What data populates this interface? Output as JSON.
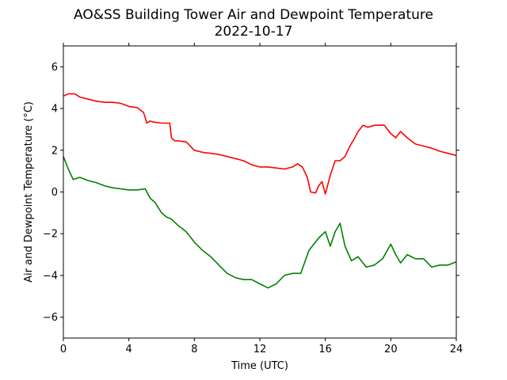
{
  "chart_data": {
    "type": "line",
    "title": "AO&SS Building Tower Air and Dewpoint Temperature",
    "subtitle": "2022-10-17",
    "xlabel": "Time (UTC)",
    "ylabel": "Air and Dewpoint Temperature (°C)",
    "xlim": [
      0,
      24
    ],
    "ylim": [
      -7,
      7
    ],
    "x_ticks": [
      0,
      4,
      8,
      12,
      16,
      20,
      24
    ],
    "y_ticks": [
      -6,
      -4,
      -2,
      0,
      2,
      4,
      6
    ],
    "grid": false,
    "legend": "none",
    "series": [
      {
        "color": "#ff0000",
        "x": [
          0,
          0.3,
          0.7,
          1.0,
          1.5,
          2.0,
          2.5,
          3.0,
          3.5,
          4.0,
          4.5,
          4.9,
          5.1,
          5.3,
          5.5,
          6.0,
          6.5,
          6.6,
          6.8,
          7.0,
          7.5,
          8.0,
          8.5,
          9.0,
          9.5,
          10.0,
          10.5,
          11.0,
          11.5,
          12.0,
          12.5,
          13.0,
          13.5,
          14.0,
          14.3,
          14.6,
          14.9,
          15.1,
          15.4,
          15.6,
          15.8,
          16.0,
          16.3,
          16.6,
          16.9,
          17.2,
          17.5,
          17.8,
          18.0,
          18.3,
          18.6,
          19.0,
          19.3,
          19.6,
          20.0,
          20.3,
          20.6,
          21.0,
          21.5,
          22.0,
          22.5,
          23.0,
          23.5,
          24.0
        ],
        "values": [
          4.6,
          4.7,
          4.7,
          4.55,
          4.45,
          4.35,
          4.3,
          4.3,
          4.25,
          4.1,
          4.05,
          3.8,
          3.3,
          3.4,
          3.35,
          3.3,
          3.3,
          2.6,
          2.45,
          2.45,
          2.4,
          2.0,
          1.9,
          1.85,
          1.8,
          1.7,
          1.6,
          1.5,
          1.3,
          1.2,
          1.2,
          1.15,
          1.1,
          1.2,
          1.35,
          1.2,
          0.7,
          0.0,
          -0.05,
          0.3,
          0.5,
          -0.1,
          0.8,
          1.5,
          1.5,
          1.7,
          2.2,
          2.6,
          2.9,
          3.2,
          3.1,
          3.2,
          3.2,
          3.2,
          2.8,
          2.6,
          2.9,
          2.6,
          2.3,
          2.2,
          2.1,
          1.95,
          1.85,
          1.75
        ]
      },
      {
        "color": "#008000",
        "x": [
          0,
          0.3,
          0.6,
          1.0,
          1.5,
          2.0,
          2.5,
          3.0,
          3.5,
          4.0,
          4.5,
          5.0,
          5.3,
          5.6,
          6.0,
          6.3,
          6.6,
          7.0,
          7.5,
          8.0,
          8.5,
          9.0,
          9.5,
          10.0,
          10.5,
          11.0,
          11.5,
          12.0,
          12.5,
          13.0,
          13.5,
          14.0,
          14.5,
          15.0,
          15.3,
          15.6,
          16.0,
          16.3,
          16.6,
          16.9,
          17.2,
          17.6,
          18.0,
          18.5,
          19.0,
          19.5,
          20.0,
          20.3,
          20.6,
          21.0,
          21.5,
          22.0,
          22.5,
          23.0,
          23.5,
          24.0
        ],
        "values": [
          1.7,
          1.1,
          0.6,
          0.7,
          0.55,
          0.45,
          0.3,
          0.2,
          0.15,
          0.1,
          0.1,
          0.15,
          -0.3,
          -0.5,
          -1.0,
          -1.2,
          -1.3,
          -1.6,
          -1.9,
          -2.4,
          -2.8,
          -3.1,
          -3.5,
          -3.9,
          -4.1,
          -4.2,
          -4.2,
          -4.4,
          -4.6,
          -4.4,
          -4.0,
          -3.9,
          -3.9,
          -2.8,
          -2.5,
          -2.2,
          -1.9,
          -2.6,
          -1.9,
          -1.5,
          -2.6,
          -3.3,
          -3.1,
          -3.6,
          -3.5,
          -3.2,
          -2.5,
          -3.0,
          -3.4,
          -3.0,
          -3.2,
          -3.2,
          -3.6,
          -3.5,
          -3.5,
          -3.35
        ]
      }
    ]
  }
}
